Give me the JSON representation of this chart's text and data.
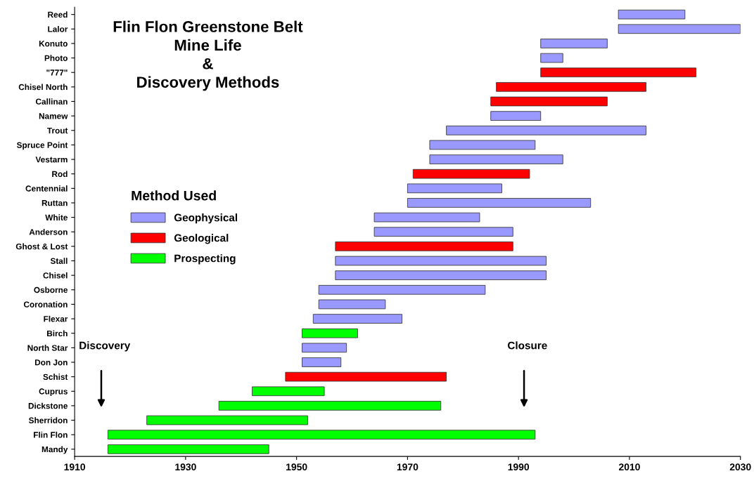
{
  "chart_data": {
    "type": "bar",
    "orientation": "horizontal",
    "title": "Flin Flon Greenstone Belt\nMine Life\n&\nDiscovery Methods",
    "categories": [
      "Reed",
      "Lalor",
      "Konuto",
      "Photo",
      "\"777\"",
      "Chisel North",
      "Callinan",
      "Namew",
      "Trout",
      "Spruce Point",
      "Vestarm",
      "Rod",
      "Centennial",
      "Ruttan",
      "White",
      "Anderson",
      "Ghost & Lost",
      "Stall",
      "Chisel",
      "Osborne",
      "Coronation",
      "Flexar",
      "Birch",
      "North Star",
      "Don Jon",
      "Schist",
      "Cuprus",
      "Dickstone",
      "Sherridon",
      "Flin Flon",
      "Mandy"
    ],
    "series": [
      {
        "name": "Geophysical",
        "color": "#9999ff",
        "base": [
          2008,
          2008,
          1994,
          1994,
          null,
          null,
          null,
          1985,
          1977,
          1974,
          1974,
          null,
          1970,
          1970,
          1964,
          1964,
          null,
          1957,
          1957,
          1954,
          1954,
          1953,
          null,
          1951,
          1951,
          null,
          null,
          null,
          null,
          null,
          null
        ],
        "values": [
          12,
          22,
          12,
          4,
          null,
          null,
          null,
          9,
          36,
          19,
          24,
          null,
          17,
          33,
          19,
          25,
          null,
          38,
          38,
          30,
          12,
          16,
          null,
          8,
          7,
          null,
          null,
          null,
          null,
          null,
          null
        ]
      },
      {
        "name": "Geological",
        "color": "#ff0000",
        "base": [
          null,
          null,
          null,
          null,
          1994,
          1986,
          1985,
          null,
          null,
          null,
          null,
          1971,
          null,
          null,
          null,
          null,
          1957,
          null,
          null,
          null,
          null,
          null,
          null,
          null,
          null,
          1948,
          null,
          null,
          null,
          null,
          null
        ],
        "values": [
          null,
          null,
          null,
          null,
          28,
          27,
          21,
          null,
          null,
          null,
          null,
          21,
          null,
          null,
          null,
          null,
          32,
          null,
          null,
          null,
          null,
          null,
          null,
          null,
          null,
          29,
          null,
          null,
          null,
          null,
          null
        ]
      },
      {
        "name": "Prospecting",
        "color": "#00ff00",
        "base": [
          null,
          null,
          null,
          null,
          null,
          null,
          null,
          null,
          null,
          null,
          null,
          null,
          null,
          null,
          null,
          null,
          null,
          null,
          null,
          null,
          null,
          null,
          1951,
          null,
          null,
          null,
          1942,
          1936,
          1923,
          1916,
          1916
        ],
        "values": [
          null,
          null,
          null,
          null,
          null,
          null,
          null,
          null,
          null,
          null,
          null,
          null,
          null,
          null,
          null,
          null,
          null,
          null,
          null,
          null,
          null,
          null,
          10,
          null,
          null,
          null,
          13,
          40,
          29,
          77,
          29
        ]
      }
    ],
    "legend_title": "Method Used",
    "legend": "center left",
    "xlim": [
      1910,
      2030
    ],
    "xticks": [
      1910,
      1930,
      1950,
      1970,
      1990,
      2010,
      2030
    ],
    "annotations": [
      "Discovery",
      "Closure"
    ]
  }
}
